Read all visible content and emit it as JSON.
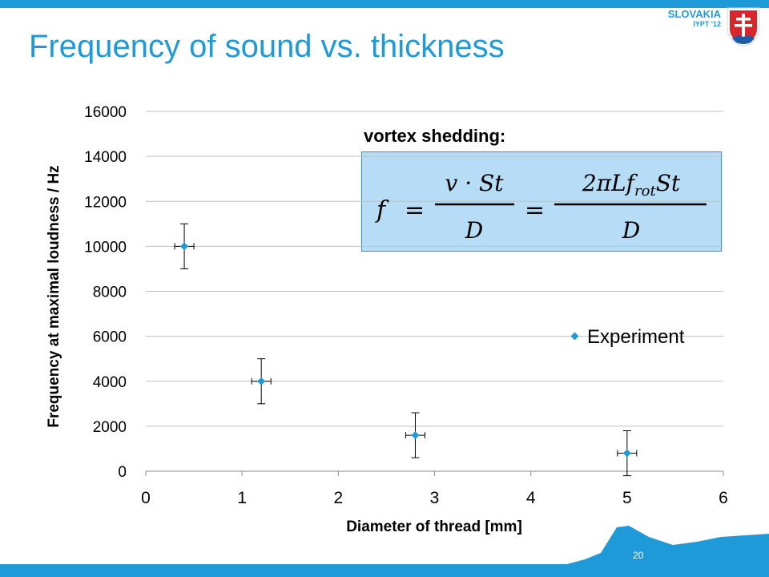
{
  "slide": {
    "title": "Frequency of sound vs. thickness",
    "brand_country": "SLOVAKIA",
    "brand_event": "IYPT '12",
    "page_number": "20"
  },
  "annotation": {
    "heading": "vortex shedding:",
    "formula_parts": {
      "lhs": "f",
      "eq": "=",
      "num1": "v · St",
      "den1": "D",
      "num2": "2πLf",
      "num2_sub": "rot",
      "num2_tail": "St",
      "den2": "D"
    }
  },
  "colors": {
    "accent": "#1e9ad8",
    "marker": "#1e9ad8",
    "grid": "#bfbfbf",
    "formula_bg": "#b7ddf6"
  },
  "chart_data": {
    "type": "scatter",
    "xlabel": "Diameter of thread [mm]",
    "ylabel": "Frequency at maximal loudness / Hz",
    "xlim": [
      0,
      6
    ],
    "ylim": [
      0,
      16000
    ],
    "x_ticks": [
      "0",
      "1",
      "2",
      "3",
      "4",
      "5",
      "6"
    ],
    "y_ticks": [
      "0",
      "2000",
      "4000",
      "6000",
      "8000",
      "10000",
      "12000",
      "14000",
      "16000"
    ],
    "grid": "horizontal",
    "legend_position": "right",
    "series": [
      {
        "name": "Experiment",
        "points": [
          {
            "x": 0.4,
            "y": 10000,
            "xerr": 0.1,
            "yerr": 1000
          },
          {
            "x": 1.2,
            "y": 4000,
            "xerr": 0.1,
            "yerr": 1000
          },
          {
            "x": 2.8,
            "y": 1600,
            "xerr": 0.1,
            "yerr": 1000
          },
          {
            "x": 5.0,
            "y": 800,
            "xerr": 0.1,
            "yerr": 1000
          }
        ]
      }
    ]
  }
}
